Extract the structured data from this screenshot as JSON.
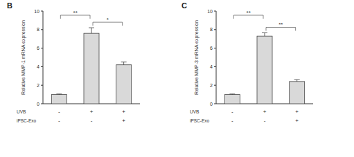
{
  "chart_data": [
    {
      "type": "bar",
      "title": "B",
      "y_label": "Relative MMP-1 mRNA expression",
      "categories": [
        null,
        null,
        null
      ],
      "values": [
        1,
        7.6,
        4.2
      ],
      "errors": [
        0.05,
        0.6,
        0.3
      ],
      "color": "#d9d9d9",
      "ylim": [
        0,
        10
      ],
      "yticks": [
        0,
        2,
        4,
        6,
        8,
        10
      ],
      "conditions": [
        {
          "label": "UVB",
          "values": [
            "-",
            "+",
            "+"
          ]
        },
        {
          "label": "iPSC-Exo",
          "values": [
            "-",
            "-",
            "+"
          ]
        }
      ],
      "significance": [
        {
          "from": 0,
          "to": 1,
          "label": "**"
        },
        {
          "from": 1,
          "to": 2,
          "label": "*"
        }
      ]
    },
    {
      "type": "bar",
      "title": "C",
      "y_label": "Relative MMP-3 mRNA expression",
      "categories": [
        null,
        null,
        null
      ],
      "values": [
        1,
        7.3,
        2.4
      ],
      "errors": [
        0.05,
        0.35,
        0.2
      ],
      "color": "#d9d9d9",
      "ylim": [
        0,
        10
      ],
      "yticks": [
        0,
        2,
        4,
        6,
        8,
        10
      ],
      "conditions": [
        {
          "label": "UVB",
          "values": [
            "-",
            "+",
            "+"
          ]
        },
        {
          "label": "iPSC-Exo",
          "values": [
            "-",
            "-",
            "+"
          ]
        }
      ],
      "significance": [
        {
          "from": 0,
          "to": 1,
          "label": "**"
        },
        {
          "from": 1,
          "to": 2,
          "label": "**"
        }
      ]
    }
  ]
}
